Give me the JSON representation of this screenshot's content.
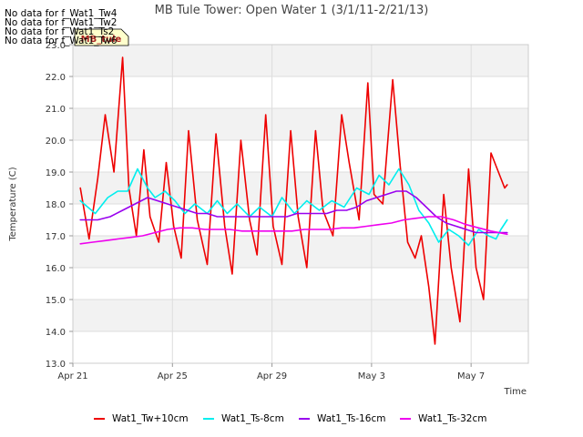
{
  "no_data_messages": [
    "No data for f_Wat1_Tw4",
    "No data for f_Wat1_Tw2",
    "No data for f_Wat1_Ts2",
    "No data for f_Wat1_Tw6"
  ],
  "badge_label": "MB_tule",
  "chart_data": {
    "type": "line",
    "title": "MB Tule Tower: Open Water 1 (3/1/11-2/21/13)",
    "xlabel": "Time",
    "ylabel": "Temperature (C)",
    "xlim": [
      0,
      18.3
    ],
    "ylim": [
      13.0,
      23.0
    ],
    "yticks": [
      13.0,
      14.0,
      15.0,
      16.0,
      17.0,
      18.0,
      19.0,
      20.0,
      21.0,
      22.0,
      23.0
    ],
    "ytick_labels": [
      "13.0",
      "14.0",
      "15.0",
      "16.0",
      "17.0",
      "18.0",
      "19.0",
      "20.0",
      "21.0",
      "22.0",
      "23.0"
    ],
    "xticks": [
      0,
      4,
      8,
      12,
      16
    ],
    "xtick_labels": [
      "Apr 21",
      "Apr 25",
      "Apr 29",
      "May 3",
      "May 7"
    ],
    "grid": true,
    "legend_position": "bottom",
    "series": [
      {
        "name": "Wat1_Tw+10cm",
        "color": "#ee0000",
        "x": [
          0.3,
          0.65,
          1.0,
          1.3,
          1.65,
          2.0,
          2.25,
          2.55,
          2.85,
          3.1,
          3.45,
          3.75,
          4.05,
          4.35,
          4.65,
          5.0,
          5.4,
          5.75,
          6.1,
          6.4,
          6.75,
          7.1,
          7.4,
          7.75,
          8.05,
          8.4,
          8.75,
          9.05,
          9.4,
          9.75,
          10.05,
          10.45,
          10.8,
          11.1,
          11.5,
          11.85,
          12.1,
          12.45,
          12.85,
          13.15,
          13.45,
          13.75,
          14.0,
          14.3,
          14.55,
          14.9,
          15.2,
          15.55,
          15.9,
          16.2,
          16.5,
          16.8,
          17.05,
          17.35,
          17.45
        ],
        "y": [
          18.5,
          16.9,
          18.8,
          20.8,
          19.0,
          22.6,
          18.5,
          17.0,
          19.7,
          17.6,
          16.8,
          19.3,
          17.3,
          16.3,
          20.3,
          17.5,
          16.1,
          20.2,
          17.3,
          15.8,
          20.0,
          17.5,
          16.4,
          20.8,
          17.3,
          16.1,
          20.3,
          17.6,
          16.0,
          20.3,
          17.8,
          17.0,
          20.8,
          19.3,
          17.5,
          21.8,
          18.3,
          18.0,
          21.9,
          19.2,
          16.8,
          16.3,
          17.0,
          15.4,
          13.6,
          18.3,
          16.0,
          14.3,
          19.1,
          16.0,
          15.0,
          19.6,
          19.1,
          18.5,
          18.6
        ]
      },
      {
        "name": "Wat1_Ts-8cm",
        "color": "#00eeee",
        "x": [
          0.3,
          0.9,
          1.4,
          1.8,
          2.2,
          2.6,
          3.0,
          3.3,
          3.7,
          4.1,
          4.5,
          4.9,
          5.4,
          5.8,
          6.2,
          6.6,
          7.1,
          7.5,
          8.0,
          8.4,
          8.9,
          9.4,
          9.9,
          10.4,
          10.9,
          11.4,
          11.9,
          12.3,
          12.7,
          13.1,
          13.5,
          13.9,
          14.3,
          14.7,
          15.1,
          15.5,
          15.9,
          16.3,
          16.7,
          17.0,
          17.2,
          17.45
        ],
        "y": [
          18.1,
          17.7,
          18.2,
          18.4,
          18.4,
          19.1,
          18.5,
          18.2,
          18.4,
          18.1,
          17.7,
          18.0,
          17.7,
          18.1,
          17.7,
          18.0,
          17.6,
          17.9,
          17.6,
          18.2,
          17.7,
          18.1,
          17.8,
          18.1,
          17.9,
          18.5,
          18.3,
          18.9,
          18.6,
          19.1,
          18.6,
          17.8,
          17.4,
          16.8,
          17.2,
          17.0,
          16.7,
          17.2,
          17.0,
          16.9,
          17.2,
          17.5
        ]
      },
      {
        "name": "Wat1_Ts-16cm",
        "color": "#9900ee",
        "x": [
          0.3,
          0.6,
          1.0,
          1.5,
          2.0,
          2.5,
          3.0,
          3.4,
          3.8,
          4.2,
          4.6,
          5.0,
          5.4,
          5.8,
          6.2,
          6.6,
          7.0,
          7.4,
          7.8,
          8.2,
          8.6,
          9.0,
          9.4,
          9.8,
          10.2,
          10.6,
          11.0,
          11.4,
          11.8,
          12.2,
          12.6,
          13.0,
          13.4,
          13.8,
          14.2,
          14.6,
          15.0,
          15.4,
          15.8,
          16.2,
          16.6,
          17.0,
          17.45
        ],
        "y": [
          17.5,
          17.5,
          17.5,
          17.6,
          17.8,
          18.0,
          18.2,
          18.1,
          18.0,
          17.9,
          17.8,
          17.7,
          17.7,
          17.6,
          17.6,
          17.6,
          17.6,
          17.6,
          17.6,
          17.6,
          17.6,
          17.7,
          17.7,
          17.7,
          17.7,
          17.8,
          17.8,
          17.9,
          18.1,
          18.2,
          18.3,
          18.4,
          18.4,
          18.2,
          17.9,
          17.6,
          17.4,
          17.3,
          17.2,
          17.1,
          17.1,
          17.1,
          17.1
        ]
      },
      {
        "name": "Wat1_Ts-32cm",
        "color": "#ee00ee",
        "x": [
          0.3,
          0.8,
          1.3,
          1.8,
          2.3,
          2.8,
          3.3,
          3.8,
          4.3,
          4.8,
          5.3,
          5.8,
          6.3,
          6.8,
          7.3,
          7.8,
          8.3,
          8.8,
          9.3,
          9.8,
          10.3,
          10.8,
          11.3,
          11.8,
          12.3,
          12.8,
          13.3,
          13.8,
          14.3,
          14.8,
          15.3,
          15.8,
          16.3,
          16.8,
          17.45
        ],
        "y": [
          16.75,
          16.8,
          16.85,
          16.9,
          16.95,
          17.0,
          17.1,
          17.2,
          17.25,
          17.25,
          17.2,
          17.2,
          17.2,
          17.15,
          17.15,
          17.15,
          17.15,
          17.15,
          17.2,
          17.2,
          17.2,
          17.25,
          17.25,
          17.3,
          17.35,
          17.4,
          17.5,
          17.55,
          17.6,
          17.6,
          17.5,
          17.35,
          17.25,
          17.15,
          17.05
        ]
      }
    ]
  }
}
